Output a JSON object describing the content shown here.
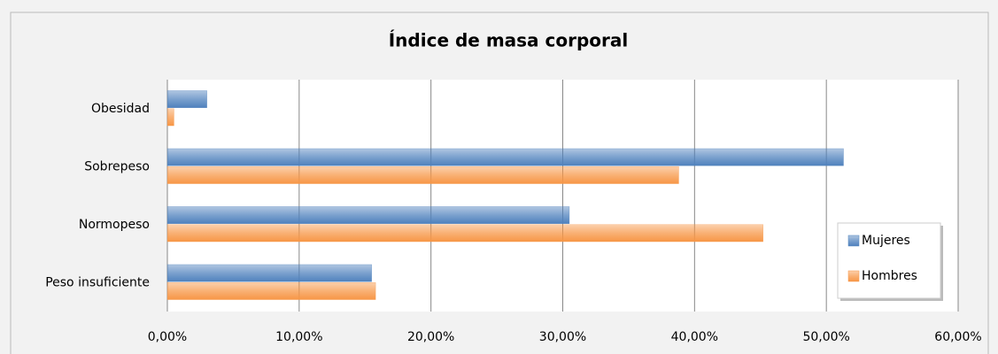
{
  "chart_data": {
    "type": "hbar",
    "title": "Índice de masa corporal",
    "categories": [
      "Obesidad",
      "Sobrepeso",
      "Normopeso",
      "Peso insuficiente"
    ],
    "series": [
      {
        "name": "Mujeres",
        "color": "#4f81bd",
        "values": [
          3.0,
          51.3,
          30.5,
          15.5
        ]
      },
      {
        "name": "Hombres",
        "color": "#f79646",
        "values": [
          0.5,
          38.8,
          45.2,
          15.8
        ]
      }
    ],
    "xlim": [
      0,
      60
    ],
    "xticks": [
      {
        "value": 0,
        "label": "0,00%"
      },
      {
        "value": 10,
        "label": "10,00%"
      },
      {
        "value": 20,
        "label": "20,00%"
      },
      {
        "value": 30,
        "label": "30,00%"
      },
      {
        "value": 40,
        "label": "40,00%"
      },
      {
        "value": 50,
        "label": "50,00%"
      },
      {
        "value": 60,
        "label": "60,00%"
      }
    ],
    "grid": true,
    "legend": "lower right"
  }
}
